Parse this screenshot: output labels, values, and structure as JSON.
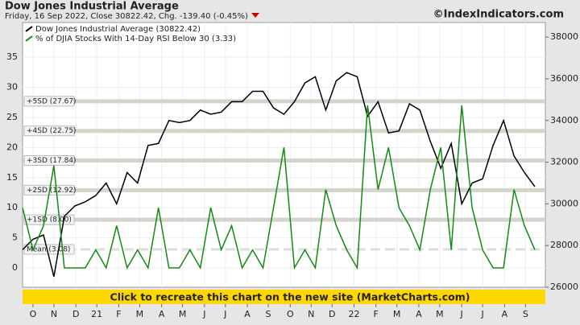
{
  "chart_data": {
    "type": "line",
    "title": "Dow Jones Industrial Average",
    "subtitle": "Friday, 16 Sep 2022, Close 30822.42, Chg. -139.40 (-0.45%)",
    "source": "©IndexIndicators.com",
    "banner": "Click to recreate this chart on the new site (MarketCharts.com)",
    "x": [
      0,
      10,
      20,
      30,
      40,
      50,
      60,
      70,
      80,
      90,
      100,
      110,
      120,
      130,
      140,
      150,
      160,
      170,
      180,
      190,
      200,
      210,
      220,
      230,
      240,
      250,
      260,
      270,
      280,
      290,
      300,
      310,
      320,
      330,
      340,
      350,
      360,
      370,
      380,
      390,
      400,
      410,
      420,
      430,
      440,
      450,
      460,
      470,
      480,
      490
    ],
    "xlim": [
      0,
      500
    ],
    "xticks": [
      {
        "value": 10,
        "label": "O"
      },
      {
        "value": 30,
        "label": "N"
      },
      {
        "value": 51,
        "label": "D"
      },
      {
        "value": 71,
        "label": "21"
      },
      {
        "value": 92,
        "label": "F"
      },
      {
        "value": 112,
        "label": "M"
      },
      {
        "value": 133,
        "label": "A"
      },
      {
        "value": 153,
        "label": "M"
      },
      {
        "value": 174,
        "label": "J"
      },
      {
        "value": 194,
        "label": "J"
      },
      {
        "value": 215,
        "label": "A"
      },
      {
        "value": 235,
        "label": "S"
      },
      {
        "value": 256,
        "label": "O"
      },
      {
        "value": 276,
        "label": "N"
      },
      {
        "value": 296,
        "label": "D"
      },
      {
        "value": 317,
        "label": "22"
      },
      {
        "value": 338,
        "label": "F"
      },
      {
        "value": 358,
        "label": "M"
      },
      {
        "value": 379,
        "label": "A"
      },
      {
        "value": 399,
        "label": "M"
      },
      {
        "value": 420,
        "label": "J"
      },
      {
        "value": 440,
        "label": "J"
      },
      {
        "value": 461,
        "label": "A"
      },
      {
        "value": 481,
        "label": "S"
      }
    ],
    "ylim": [
      -3.2,
      40.75
    ],
    "yticks": [
      0,
      5,
      10,
      15,
      20,
      25,
      30,
      35
    ],
    "y2lim": [
      26000,
      38700
    ],
    "y2ticks": [
      26000,
      28000,
      30000,
      32000,
      34000,
      36000,
      38000
    ],
    "grid": true,
    "legend": "top-left",
    "reference_lines": [
      {
        "value": 27.67,
        "label": "+5SD (27.67)"
      },
      {
        "value": 22.75,
        "label": "+4SD (22.75)"
      },
      {
        "value": 17.84,
        "label": "+3SD (17.84)"
      },
      {
        "value": 12.92,
        "label": "+2SD (12.92)"
      },
      {
        "value": 8.0,
        "label": "+1SD (8.00)"
      },
      {
        "value": 3.08,
        "label": "Mean (3.08)"
      }
    ],
    "series": [
      {
        "name": "Dow Jones Industrial Average (30822.42)",
        "color": "#000000",
        "axis": "y2",
        "values": [
          27800,
          28300,
          28500,
          26500,
          29400,
          29900,
          30100,
          30400,
          31000,
          30000,
          31500,
          31000,
          32800,
          32900,
          34000,
          33900,
          34000,
          34500,
          34300,
          34400,
          34900,
          34900,
          35400,
          35400,
          34600,
          34300,
          34900,
          35800,
          36100,
          34500,
          35900,
          36300,
          36100,
          34200,
          34900,
          33400,
          33500,
          34800,
          34500,
          33000,
          31700,
          32900,
          30000,
          31000,
          31200,
          32800,
          34000,
          32300,
          31500,
          30822
        ]
      },
      {
        "name": "% of DJIA Stocks With 14-Day RSI Below 30 (3.33)",
        "color": "#138a13",
        "values": [
          10,
          3,
          7,
          17,
          0,
          0,
          0,
          3,
          0,
          7,
          0,
          3,
          0,
          10,
          0,
          0,
          3,
          0,
          10,
          3,
          7,
          0,
          3,
          0,
          10,
          20,
          0,
          3,
          0,
          13,
          7,
          3,
          0,
          27,
          13,
          20,
          10,
          7,
          3,
          13,
          20,
          3,
          27,
          10,
          3,
          0,
          0,
          13,
          7,
          3
        ]
      }
    ]
  }
}
